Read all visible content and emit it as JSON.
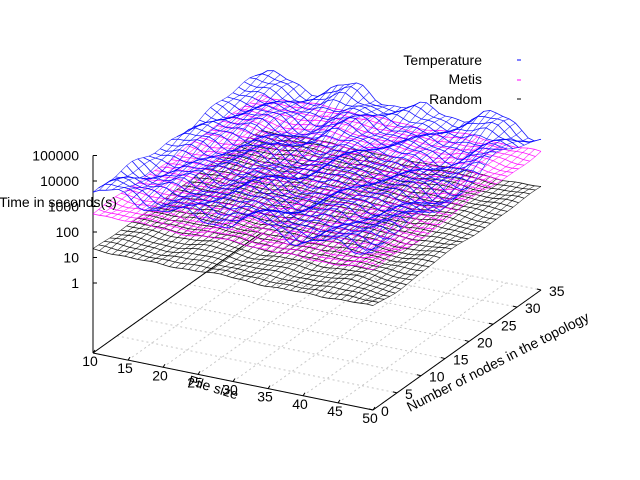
{
  "chart_data": {
    "type": "surface3d",
    "title": "",
    "xlabel": "File size",
    "ylabel": "Number of nodes in the topology",
    "zlabel": "Time in seconds(s)",
    "z_scale": "log",
    "xlim": [
      10,
      50
    ],
    "ylim": [
      0,
      35
    ],
    "zlim": [
      1,
      100000
    ],
    "x_ticks": [
      "10",
      "15",
      "20",
      "25",
      "30",
      "35",
      "40",
      "45",
      "50"
    ],
    "y_ticks": [
      "0",
      "5",
      "10",
      "15",
      "20",
      "25",
      "30",
      "35"
    ],
    "z_ticks": [
      "1",
      "10",
      "100",
      "1000",
      "10000",
      "100000"
    ],
    "grid": true,
    "legend_position": "top-right",
    "series": [
      {
        "name": "Temperature",
        "color": "#0000ff",
        "approx_level": 3000
      },
      {
        "name": "Metis",
        "color": "#ff00ff",
        "approx_level": 500
      },
      {
        "name": "Random",
        "color": "#000000",
        "approx_level": 20
      }
    ]
  }
}
